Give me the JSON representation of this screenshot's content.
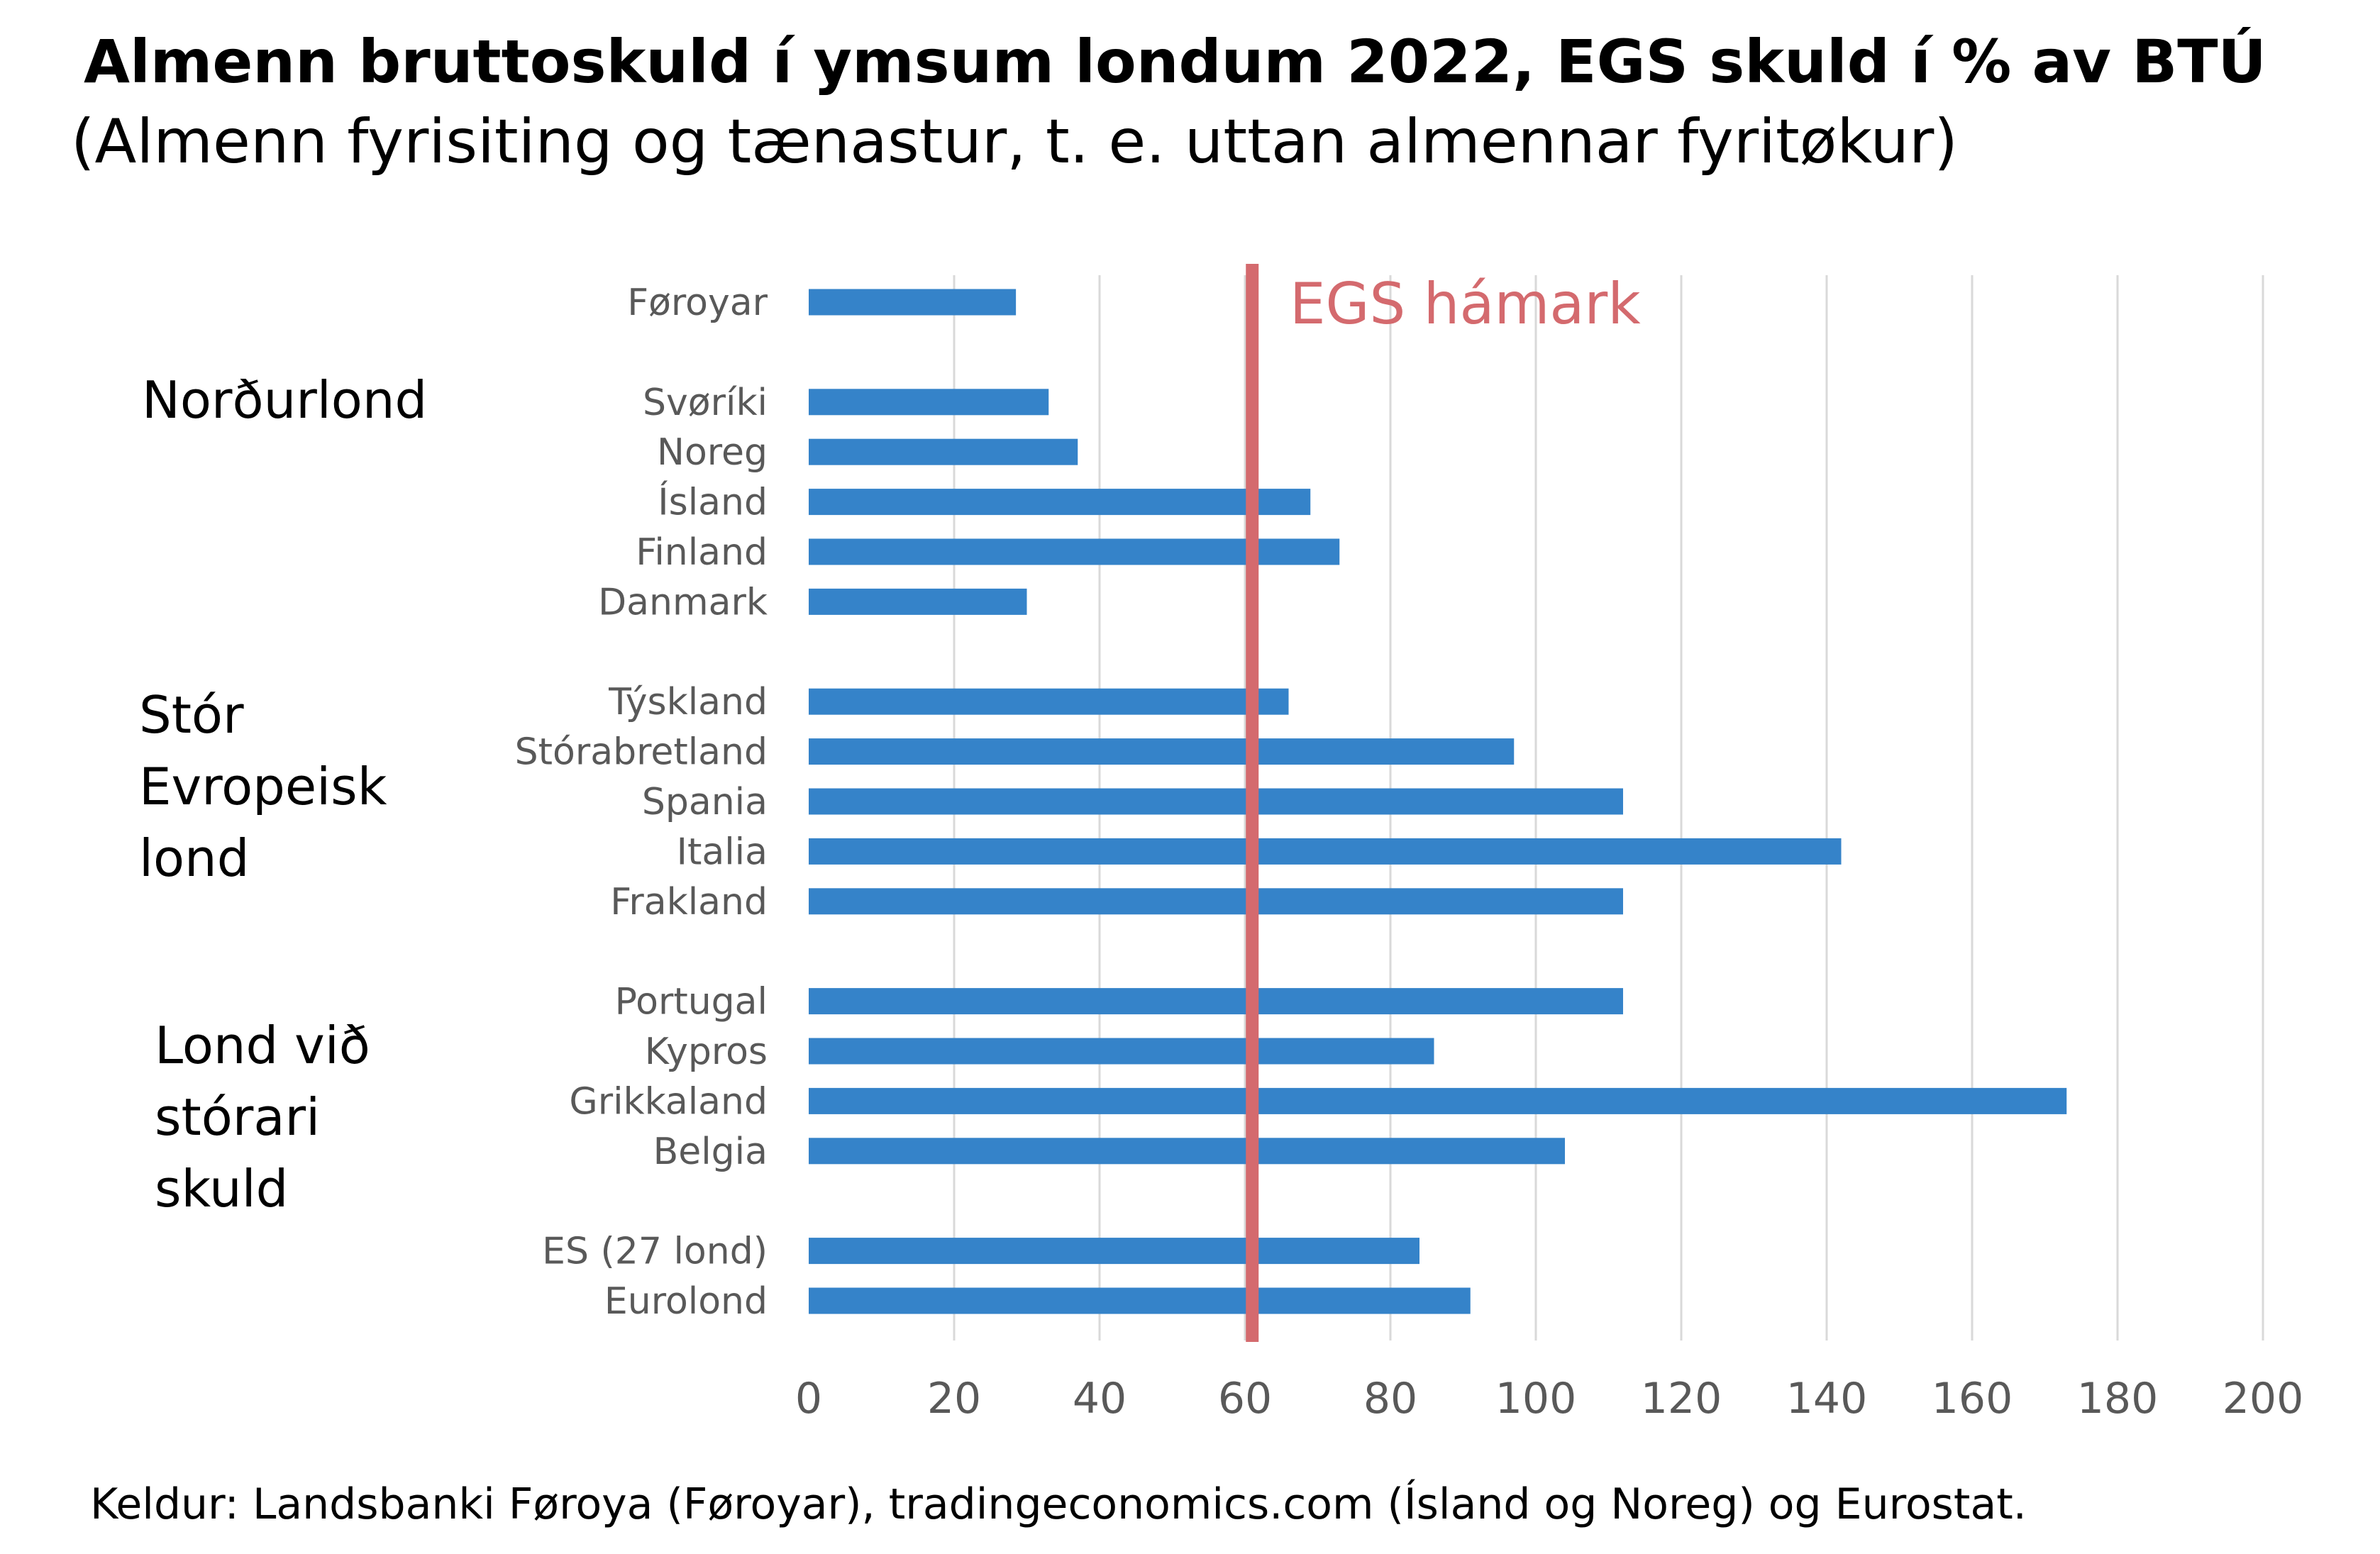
{
  "chart_data": {
    "type": "bar",
    "orientation": "horizontal",
    "title": "Almenn bruttoskuld í ymsum londum 2022, EGS skuld í % av BTÚ",
    "subtitle": "(Almenn fyrisiting og tænastur, t. e. uttan almennar fyritøkur)",
    "categories": [
      "Føroyar",
      "Svøríki",
      "Noreg",
      "Ísland",
      "Finland",
      "Danmark",
      "Týskland",
      "Stórabretland",
      "Spania",
      "Italia",
      "Frakland",
      "Portugal",
      "Kypros",
      "Grikkaland",
      "Belgia",
      "ES (27 lond)",
      "Eurolond"
    ],
    "values": [
      28.5,
      33,
      37,
      69,
      73,
      30,
      66,
      97,
      112,
      142,
      112,
      112,
      86,
      173,
      104,
      84,
      91
    ],
    "category_slots": [
      0,
      2,
      3,
      4,
      5,
      6,
      8,
      9,
      10,
      11,
      12,
      14,
      15,
      16,
      17,
      19,
      20
    ],
    "xlim": [
      0,
      200
    ],
    "x_ticks": [
      "0",
      "20",
      "40",
      "60",
      "80",
      "100",
      "120",
      "140",
      "160",
      "180",
      "200"
    ],
    "grid": "vertical",
    "bar_color": "#3583c9",
    "reference_line": {
      "value": 61,
      "label": "EGS hámark",
      "color": "#d46a6e"
    },
    "groups": [
      {
        "label": "Norðurlond",
        "lines": [
          "Norðurlond"
        ]
      },
      {
        "label": "Stór Evropeisk lond",
        "lines": [
          "Stór",
          "Evropeisk",
          "lond"
        ]
      },
      {
        "label": "Lond við stórari skuld",
        "lines": [
          "Lond við",
          "stórari",
          "skuld"
        ]
      }
    ]
  },
  "source": "Keldur: Landsbanki Føroya (Føroyar), tradingeconomics.com (Ísland og Noreg) og Eurostat."
}
